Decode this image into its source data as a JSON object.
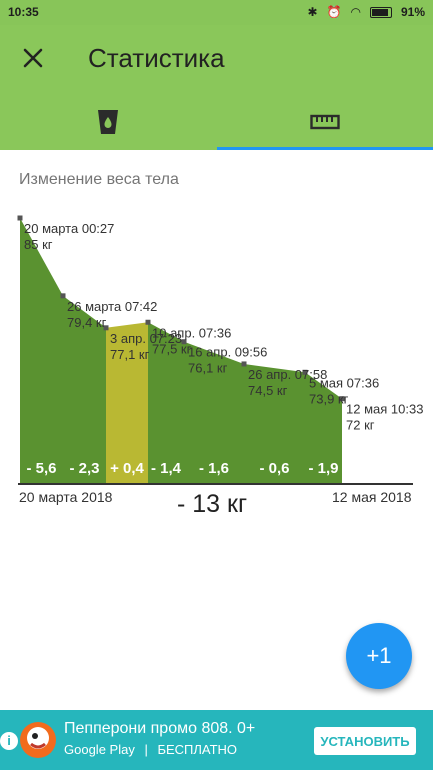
{
  "status": {
    "time": "10:35",
    "battery": "91%"
  },
  "appbar": {
    "title": "Статистика"
  },
  "tabs": [
    {
      "icon": "water-glass-icon"
    },
    {
      "icon": "ruler-icon"
    }
  ],
  "section_title": "Изменение веса тела",
  "chart_data": {
    "type": "area",
    "points": [
      {
        "label": "20 марта 00:27",
        "value": 85,
        "value_text": "85 кг"
      },
      {
        "label": "26 марта 07:42",
        "value": 79.4,
        "value_text": "79,4 кг"
      },
      {
        "label": "3 апр. 07:23",
        "value": 77.1,
        "value_text": "77,1 кг"
      },
      {
        "label": "10 апр. 07:36",
        "value": 77.5,
        "value_text": "77,5 кг"
      },
      {
        "label": "16 апр. 09:56",
        "value": 76.1,
        "value_text": "76,1 кг"
      },
      {
        "label": "26 апр. 07:58",
        "value": 74.5,
        "value_text": "74,5 кг"
      },
      {
        "label": "5 мая 07:36",
        "value": 73.9,
        "value_text": "73,9 кг"
      },
      {
        "label": "12 мая 10:33",
        "value": 72,
        "value_text": "72 кг"
      }
    ],
    "segments": [
      {
        "label": "- 5,6",
        "trend": "down"
      },
      {
        "label": "- 2,3",
        "trend": "down"
      },
      {
        "label": "+ 0,4",
        "trend": "up"
      },
      {
        "label": "- 1,4",
        "trend": "down"
      },
      {
        "label": "- 1,6",
        "trend": "down"
      },
      {
        "label": "- 0,6",
        "trend": "down"
      },
      {
        "label": "- 1,9",
        "trend": "down"
      }
    ],
    "x_start_label": "20 марта 2018",
    "x_end_label": "12 мая 2018",
    "total_change": "- 13 кг",
    "colors": {
      "down": "#5a9230",
      "up": "#b9b833"
    }
  },
  "fab": {
    "label": "+1"
  },
  "ad": {
    "info": "i",
    "title": "Пепперони промо 808. 0+",
    "store": "Google Play",
    "price": "БЕСПЛАТНО",
    "button": "УСТАНОВИТЬ"
  }
}
